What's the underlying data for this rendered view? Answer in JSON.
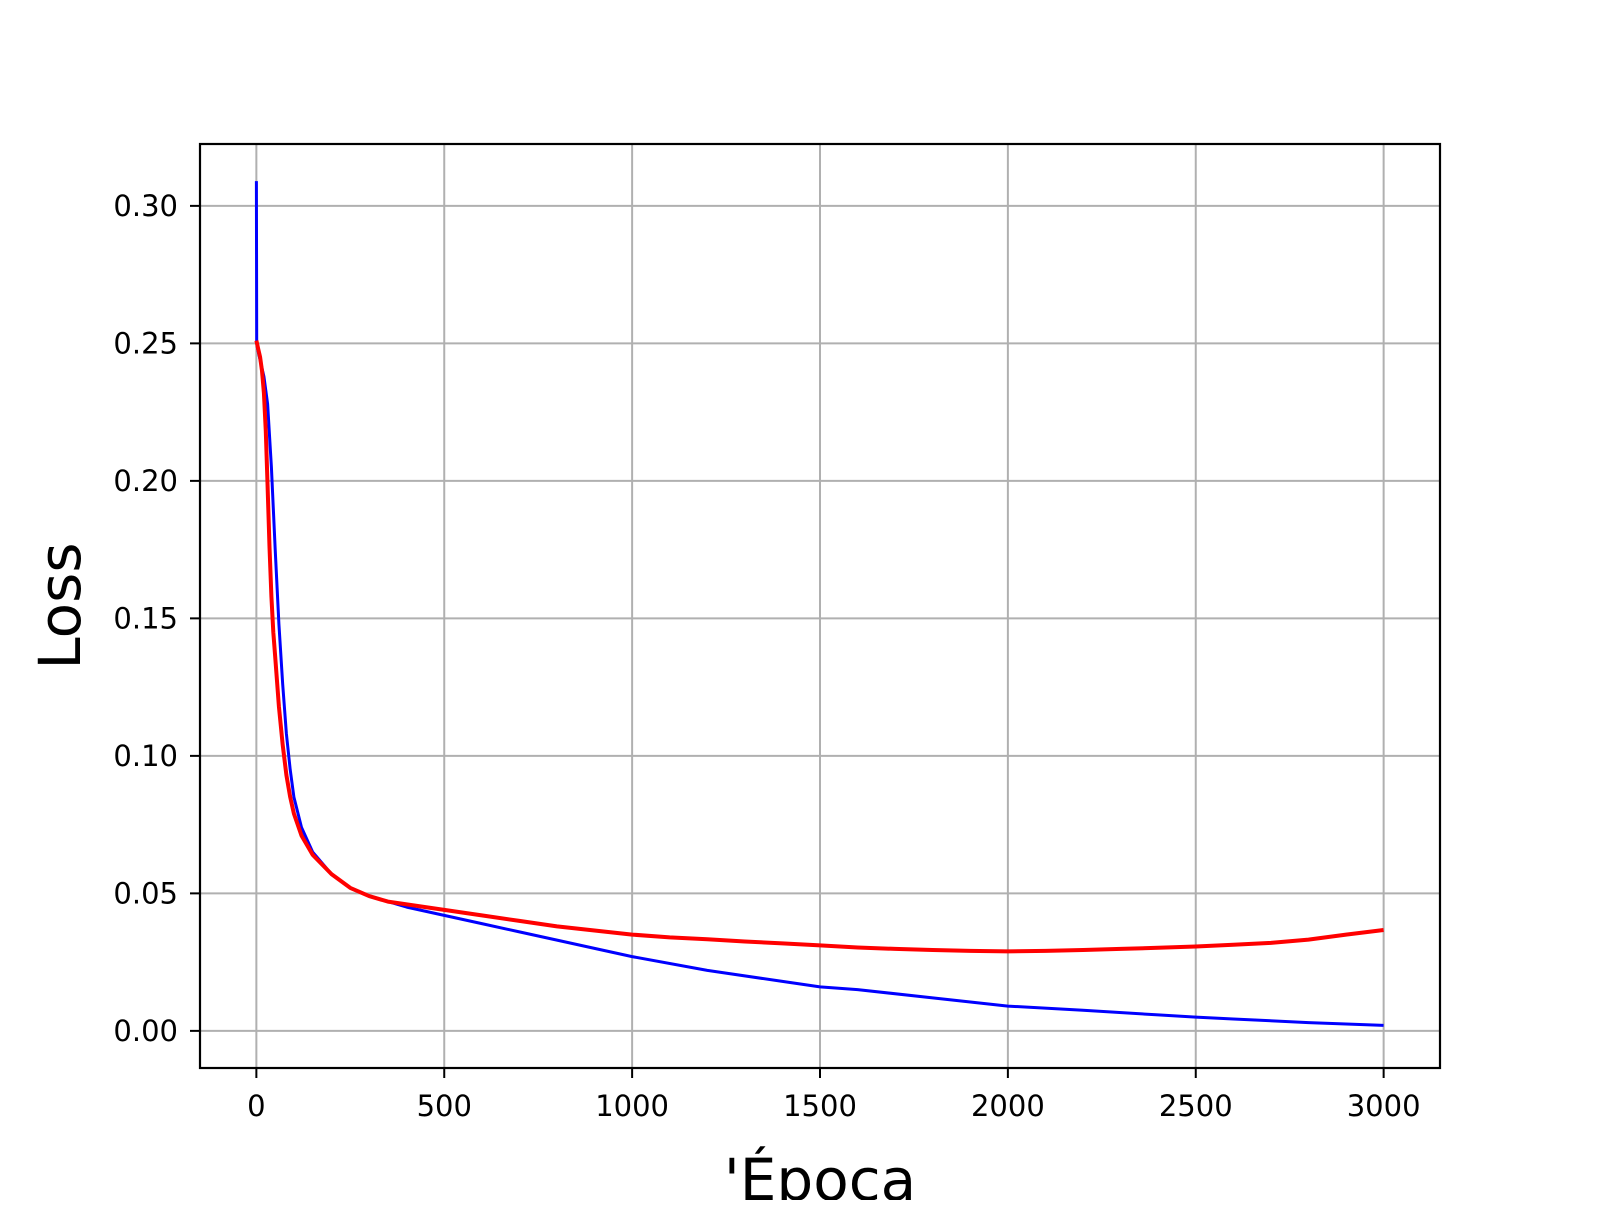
{
  "chart_data": {
    "type": "line",
    "title": "",
    "xlabel": "'Época",
    "ylabel": "Loss",
    "xlim": [
      -150,
      3150
    ],
    "ylim": [
      -0.0135,
      0.3225
    ],
    "xticks": [
      0,
      500,
      1000,
      1500,
      2000,
      2500,
      3000
    ],
    "xtick_labels": [
      "0",
      "500",
      "1000",
      "1500",
      "2000",
      "2500",
      "3000"
    ],
    "yticks": [
      0.0,
      0.05,
      0.1,
      0.15,
      0.2,
      0.25,
      0.3
    ],
    "ytick_labels": [
      "0.00",
      "0.05",
      "0.10",
      "0.15",
      "0.20",
      "0.25",
      "0.30"
    ],
    "grid": true,
    "legend": "none",
    "series": [
      {
        "color": "#0000ff",
        "x": [
          0,
          1,
          2,
          5,
          10,
          20,
          30,
          40,
          50,
          60,
          70,
          80,
          90,
          100,
          120,
          150,
          200,
          250,
          300,
          350,
          400,
          500,
          600,
          700,
          800,
          900,
          1000,
          1200,
          1400,
          1500,
          1600,
          1800,
          2000,
          2200,
          2400,
          2500,
          2600,
          2800,
          3000
        ],
        "y": [
          0.309,
          0.251,
          0.249,
          0.247,
          0.244,
          0.238,
          0.228,
          0.205,
          0.175,
          0.148,
          0.126,
          0.108,
          0.095,
          0.085,
          0.074,
          0.065,
          0.057,
          0.052,
          0.049,
          0.047,
          0.045,
          0.042,
          0.039,
          0.036,
          0.033,
          0.03,
          0.027,
          0.022,
          0.018,
          0.016,
          0.015,
          0.012,
          0.009,
          0.0075,
          0.0058,
          0.005,
          0.0043,
          0.003,
          0.002
        ]
      },
      {
        "color": "#ff0000",
        "x": [
          0,
          5,
          10,
          15,
          20,
          25,
          30,
          35,
          40,
          45,
          50,
          60,
          70,
          80,
          90,
          100,
          120,
          150,
          200,
          250,
          300,
          350,
          400,
          500,
          600,
          700,
          800,
          900,
          1000,
          1100,
          1200,
          1300,
          1400,
          1500,
          1600,
          1700,
          1800,
          1900,
          2000,
          2100,
          2200,
          2300,
          2400,
          2500,
          2600,
          2700,
          2800,
          2900,
          3000
        ],
        "y": [
          0.251,
          0.248,
          0.245,
          0.24,
          0.232,
          0.218,
          0.198,
          0.176,
          0.158,
          0.145,
          0.136,
          0.118,
          0.104,
          0.093,
          0.085,
          0.079,
          0.071,
          0.064,
          0.057,
          0.052,
          0.049,
          0.047,
          0.046,
          0.044,
          0.042,
          0.04,
          0.038,
          0.0365,
          0.035,
          0.034,
          0.0333,
          0.0325,
          0.0318,
          0.0311,
          0.0303,
          0.0298,
          0.0294,
          0.0291,
          0.0289,
          0.0291,
          0.0294,
          0.0298,
          0.0302,
          0.0307,
          0.0313,
          0.032,
          0.0332,
          0.035,
          0.0367
        ]
      }
    ]
  }
}
